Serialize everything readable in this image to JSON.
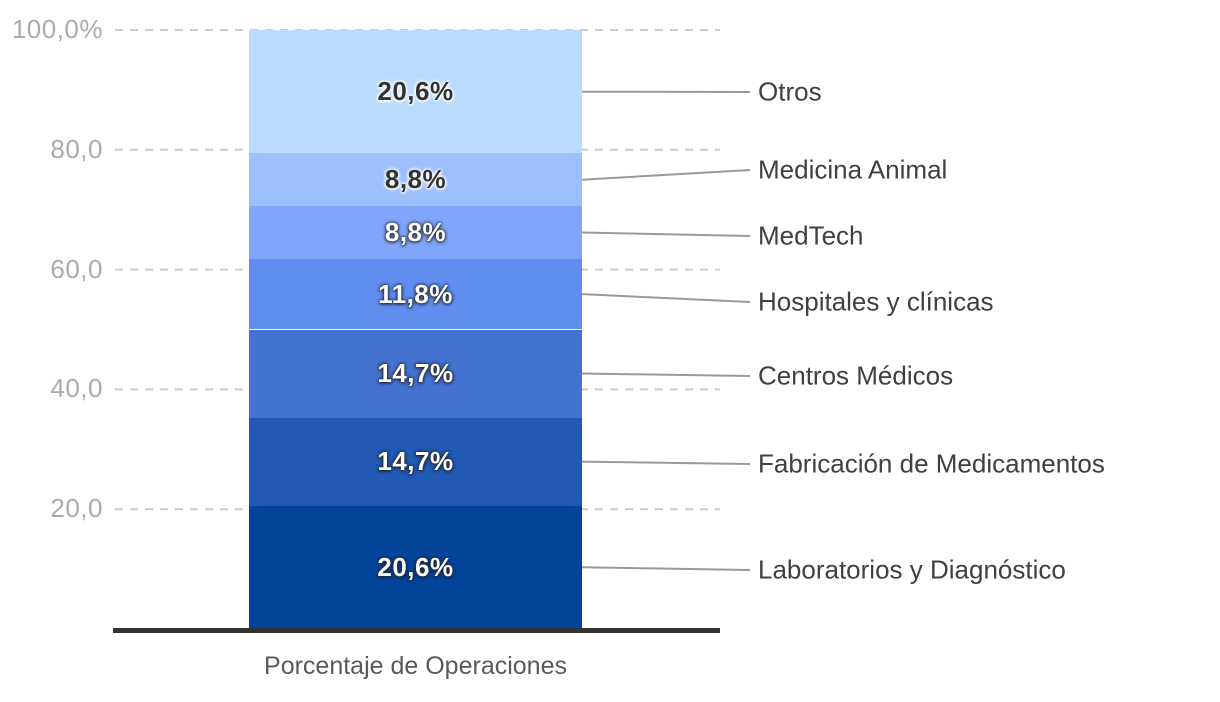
{
  "chart_data": {
    "type": "bar",
    "variant": "stacked-percentage-column",
    "orientation": "vertical",
    "title": "",
    "xlabel": "Porcentaje de Operaciones",
    "ylabel": "",
    "ylim": [
      0,
      100
    ],
    "grid": "dashed-horizontal",
    "legend_position": "right-leader-lines",
    "categories": [
      "Porcentaje de Operaciones"
    ],
    "segments": [
      {
        "name": "Otros",
        "value": 20.6,
        "value_label": "20,6%",
        "color": "#badbfd",
        "label_style": "dark"
      },
      {
        "name": "Medicina Animal",
        "value": 8.8,
        "value_label": "8,8%",
        "color": "#9dbffc",
        "label_style": "dark"
      },
      {
        "name": "MedTech",
        "value": 8.8,
        "value_label": "8,8%",
        "color": "#80a5fb",
        "label_style": "light"
      },
      {
        "name": "Hospitales y clínicas",
        "value": 11.8,
        "value_label": "11,8%",
        "color": "#5f8df0",
        "label_style": "light"
      },
      {
        "name": "Centros Médicos",
        "value": 14.7,
        "value_label": "14,7%",
        "color": "#4472d1",
        "label_style": "light"
      },
      {
        "name": "Fabricación de Medicamentos",
        "value": 14.7,
        "value_label": "14,7%",
        "color": "#2159b5",
        "label_style": "light"
      },
      {
        "name": "Laboratorios y Diagnóstico",
        "value": 20.6,
        "value_label": "20,6%",
        "color": "#03449b",
        "label_style": "light"
      }
    ],
    "y_axis": {
      "ticks": [
        {
          "label": "100,0%",
          "value": 100
        },
        {
          "label": "80,0",
          "value": 80
        },
        {
          "label": "60,0",
          "value": 60
        },
        {
          "label": "40,0",
          "value": 40
        },
        {
          "label": "20,0",
          "value": 20
        }
      ]
    },
    "style": {
      "grid_color": "#cccccc",
      "leader_line_color": "#999999",
      "axis_line_color": "#333333",
      "tick_text_color": "#ababab",
      "category_text_color": "#404040",
      "title_text_color": "#595959"
    }
  }
}
